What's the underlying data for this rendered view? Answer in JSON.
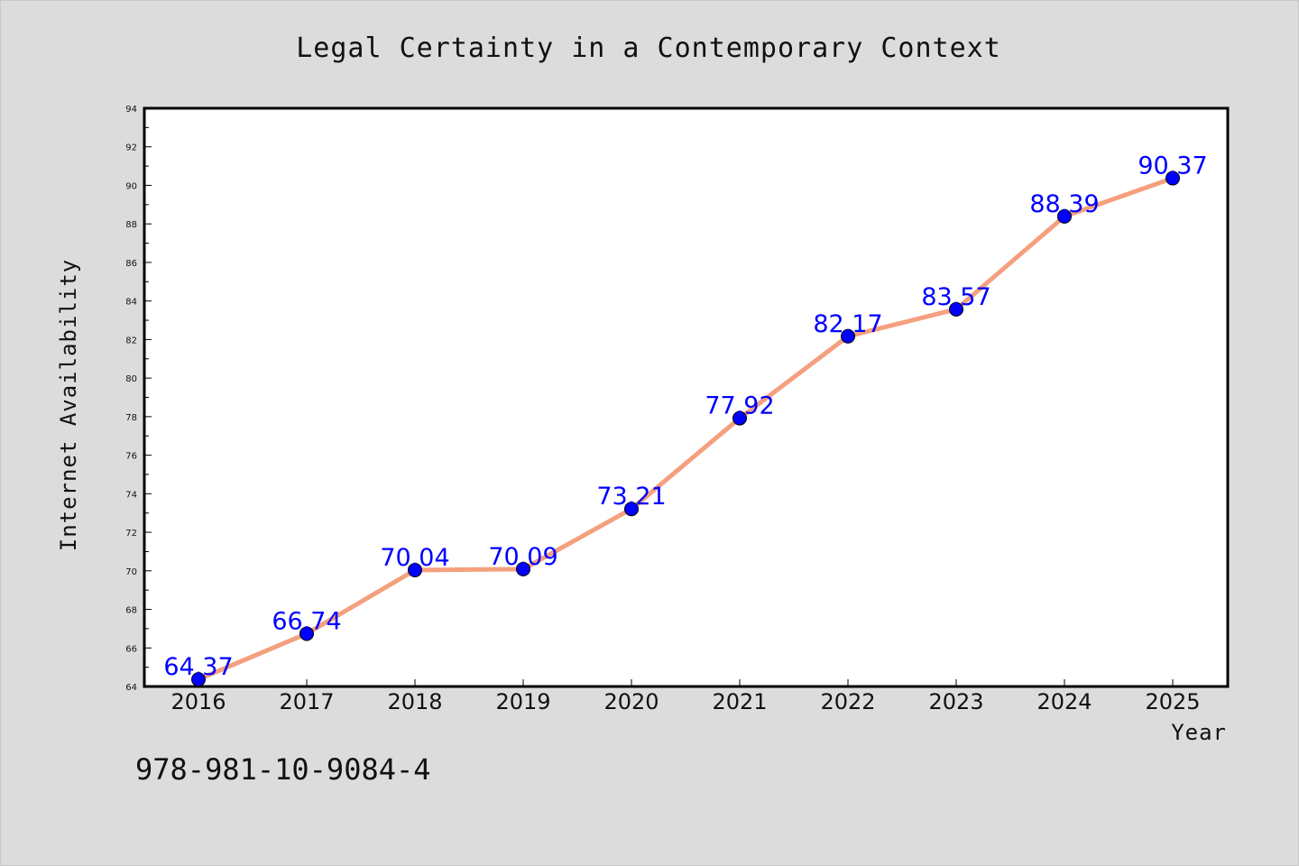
{
  "chart_data": {
    "type": "line",
    "title": "Legal Certainty in a Contemporary Context",
    "xlabel": "Year",
    "ylabel": "Internet Availability",
    "categories": [
      "2016",
      "2017",
      "2018",
      "2019",
      "2020",
      "2021",
      "2022",
      "2023",
      "2024",
      "2025"
    ],
    "series": [
      {
        "values": [
          64.37,
          66.74,
          70.04,
          70.09,
          73.21,
          77.92,
          82.17,
          83.57,
          88.39,
          90.37
        ],
        "labels": [
          "64.37",
          "66.74",
          "70.04",
          "70.09",
          "73.21",
          "77.92",
          "82.17",
          "83.57",
          "88.39",
          "90.37"
        ],
        "line_color": "#f4a07e",
        "marker_color": "#0000ff"
      }
    ],
    "ylim": [
      64,
      94
    ],
    "yticks": [
      "64",
      "66",
      "68",
      "70",
      "72",
      "74",
      "76",
      "78",
      "80",
      "82",
      "84",
      "86",
      "88",
      "90",
      "92",
      "94"
    ],
    "grid": false,
    "legend": "none"
  },
  "annotation": {
    "isbn": "978-981-10-9084-4"
  },
  "colors": {
    "background": "#dcdcdc",
    "plot_background": "#ffffff",
    "line": "#f4a07e",
    "marker": "#0000ff",
    "data_label": "#0000ff"
  }
}
